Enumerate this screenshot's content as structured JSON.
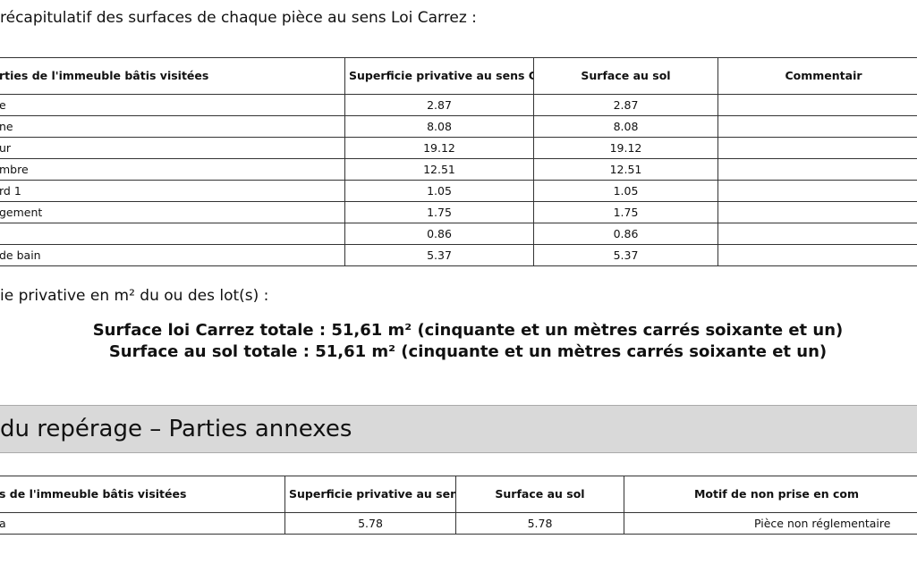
{
  "intro": "récapitulatif des surfaces de chaque pièce au sens Loi Carrez :",
  "table1": {
    "header": [
      "rties de l'immeuble bâtis visitées",
      "Superficie privative au sens Carrez",
      "Surface au sol",
      "Commentair"
    ],
    "rows": [
      [
        "e",
        "2.87",
        "2.87"
      ],
      [
        "ne",
        "8.08",
        "8.08"
      ],
      [
        "ur",
        "19.12",
        "19.12"
      ],
      [
        "mbre",
        "12.51",
        "12.51"
      ],
      [
        "rd 1",
        "1.05",
        "1.05"
      ],
      [
        "gement",
        "1.75",
        "1.75"
      ],
      [
        null,
        "0.86",
        "0.86"
      ],
      [
        "de bain",
        "5.37",
        "5.37"
      ]
    ]
  },
  "subtitle": "ie privative en m² du ou des lot(s) :",
  "totals": [
    "Surface loi Carrez totale : 51,61 m² (cinquante et un mètres carrés soixante et un)",
    "Surface au sol totale : 51,61 m² (cinquante et un mètres carrés soixante et un)"
  ],
  "section": "du repérage – Parties annexes",
  "table2": {
    "header": [
      "s de l'immeuble bâtis visitées",
      "Superficie privative au sens Carrez",
      "Surface au sol",
      "Motif de non prise en com"
    ],
    "rows": [
      [
        "a",
        "5.78",
        "5.78",
        "Pièce non réglementaire"
      ]
    ]
  }
}
